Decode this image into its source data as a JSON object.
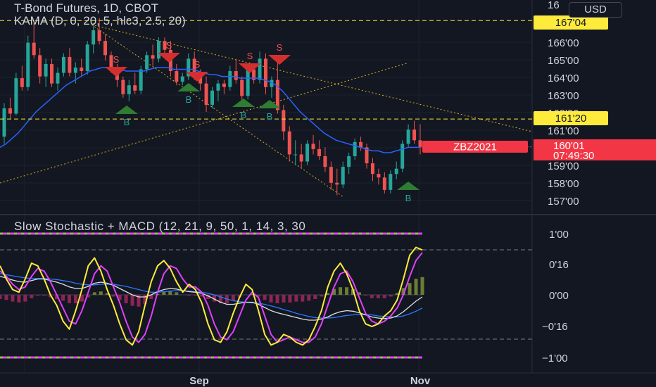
{
  "header": {
    "title": "T-Bond Futures, 1D, CBOT",
    "indicator": "KAMA (D, 0, 20, 5, hlc3, 2.5, 20)",
    "currency": "USD"
  },
  "price_axis": {
    "ticks": [
      "167'00",
      "166'00",
      "165'00",
      "164'00",
      "163'00",
      "162'00",
      "161'00",
      "160'00",
      "159'00",
      "158'00",
      "157'00"
    ],
    "top_partial": "16",
    "labels": {
      "upper_level": "167'04",
      "lower_level": "161'20",
      "last_price": "160'01",
      "countdown": "07:49:30",
      "symbol": "ZBZ2021"
    }
  },
  "oscillator": {
    "title": "Slow Stochastic + MACD (12, 21, 9, 50, 1, 14, 3, 30",
    "ticks": [
      "1'00",
      "0'16",
      "0'00",
      "−0'16",
      "−1'00"
    ]
  },
  "time_axis": {
    "labels": [
      "Sep",
      "Nov"
    ]
  },
  "signals": {
    "sell": "S",
    "buy": "B"
  },
  "colors": {
    "background": "#131722",
    "up": "#26a69a",
    "down": "#ef5350",
    "kama": "#2962ff",
    "stoch_k": "#ffeb3b",
    "stoch_d": "#e040fb",
    "macd": "#e0e0e0",
    "signal": "#2979ff",
    "level_label": "#ffeb3b",
    "price_label": "#f23645"
  },
  "chart_data": {
    "type": "candlestick",
    "x_labels": [
      "Sep",
      "Nov"
    ],
    "y_range": [
      156.5,
      168.0
    ],
    "candles": [
      [
        160.6,
        162.5,
        160.2,
        162.2
      ],
      [
        162.2,
        162.8,
        161.6,
        161.9
      ],
      [
        161.9,
        164.2,
        161.8,
        163.9
      ],
      [
        163.9,
        164.6,
        163.2,
        163.4
      ],
      [
        163.4,
        166.3,
        163.2,
        165.9
      ],
      [
        165.9,
        167.0,
        165.0,
        165.2
      ],
      [
        165.2,
        165.6,
        163.6,
        164.0
      ],
      [
        164.0,
        165.0,
        163.4,
        164.7
      ],
      [
        164.7,
        165.0,
        163.4,
        163.6
      ],
      [
        163.6,
        164.5,
        163.2,
        164.2
      ],
      [
        164.2,
        165.3,
        164.0,
        165.1
      ],
      [
        165.1,
        165.6,
        164.0,
        164.2
      ],
      [
        164.2,
        164.8,
        163.6,
        164.5
      ],
      [
        164.5,
        165.0,
        164.0,
        164.3
      ],
      [
        164.3,
        166.0,
        164.1,
        165.8
      ],
      [
        165.8,
        167.0,
        165.3,
        166.6
      ],
      [
        166.6,
        167.3,
        165.8,
        166.0
      ],
      [
        166.0,
        166.4,
        164.9,
        165.2
      ],
      [
        165.2,
        165.4,
        164.2,
        164.5
      ],
      [
        164.5,
        164.7,
        163.4,
        163.8
      ],
      [
        163.8,
        164.0,
        162.8,
        163.0
      ],
      [
        163.0,
        163.8,
        162.6,
        163.5
      ],
      [
        163.5,
        164.2,
        163.0,
        163.2
      ],
      [
        163.2,
        164.6,
        163.0,
        164.4
      ],
      [
        164.4,
        165.4,
        164.2,
        165.2
      ],
      [
        165.2,
        165.8,
        164.6,
        165.0
      ],
      [
        165.0,
        166.2,
        164.8,
        166.0
      ],
      [
        166.0,
        166.2,
        165.2,
        165.5
      ],
      [
        165.5,
        166.0,
        164.0,
        164.3
      ],
      [
        164.3,
        164.7,
        163.5,
        163.7
      ],
      [
        163.7,
        164.2,
        163.5,
        164.0
      ],
      [
        164.0,
        165.3,
        163.8,
        165.0
      ],
      [
        165.0,
        165.4,
        163.8,
        164.2
      ],
      [
        164.2,
        164.4,
        163.2,
        163.6
      ],
      [
        163.6,
        164.0,
        162.0,
        162.4
      ],
      [
        162.4,
        163.4,
        162.2,
        163.2
      ],
      [
        163.2,
        163.8,
        162.6,
        163.6
      ],
      [
        163.6,
        163.8,
        163.0,
        163.4
      ],
      [
        163.4,
        164.6,
        163.2,
        164.3
      ],
      [
        164.3,
        165.0,
        163.6,
        163.8
      ],
      [
        163.8,
        164.0,
        162.6,
        162.9
      ],
      [
        162.9,
        164.6,
        162.7,
        164.4
      ],
      [
        164.4,
        164.6,
        163.6,
        163.8
      ],
      [
        163.8,
        165.4,
        163.6,
        165.0
      ],
      [
        165.0,
        165.3,
        163.0,
        163.4
      ],
      [
        163.4,
        164.0,
        162.8,
        163.8
      ],
      [
        163.8,
        164.8,
        161.9,
        162.1
      ],
      [
        162.1,
        162.4,
        160.4,
        160.9
      ],
      [
        160.9,
        161.2,
        159.2,
        159.6
      ],
      [
        159.6,
        160.4,
        159.0,
        159.6
      ],
      [
        159.6,
        160.2,
        158.8,
        159.2
      ],
      [
        159.2,
        160.4,
        159.0,
        160.2
      ],
      [
        160.2,
        160.7,
        159.6,
        159.9
      ],
      [
        159.9,
        160.4,
        159.3,
        159.5
      ],
      [
        159.5,
        160.0,
        158.6,
        158.9
      ],
      [
        158.9,
        159.2,
        157.6,
        158.0
      ],
      [
        158.0,
        158.8,
        157.3,
        157.9
      ],
      [
        157.9,
        159.2,
        157.7,
        158.9
      ],
      [
        158.9,
        159.7,
        158.5,
        159.5
      ],
      [
        159.5,
        160.5,
        159.3,
        160.3
      ],
      [
        160.3,
        160.6,
        159.8,
        160.0
      ],
      [
        160.0,
        160.2,
        158.8,
        159.1
      ],
      [
        159.1,
        159.4,
        158.1,
        158.5
      ],
      [
        158.5,
        158.8,
        157.9,
        158.3
      ],
      [
        158.3,
        158.6,
        157.4,
        157.6
      ],
      [
        157.6,
        158.7,
        157.4,
        158.5
      ],
      [
        158.5,
        159.2,
        158.2,
        158.8
      ],
      [
        158.8,
        160.4,
        158.6,
        160.2
      ],
      [
        160.2,
        161.3,
        160.0,
        161.0
      ],
      [
        161.0,
        161.5,
        160.2,
        160.4
      ],
      [
        160.4,
        161.3,
        159.6,
        160.0
      ]
    ],
    "kama": [
      160.0,
      160.2,
      160.5,
      160.8,
      161.2,
      161.6,
      162.0,
      162.3,
      162.6,
      162.9,
      163.2,
      163.5,
      163.7,
      163.9,
      164.1,
      164.3,
      164.4,
      164.5,
      164.5,
      164.5,
      164.4,
      164.3,
      164.3,
      164.3,
      164.3,
      164.4,
      164.5,
      164.5,
      164.5,
      164.4,
      164.4,
      164.4,
      164.4,
      164.3,
      164.2,
      164.1,
      164.1,
      164.0,
      164.0,
      164.0,
      163.9,
      163.9,
      163.9,
      163.9,
      163.8,
      163.7,
      163.5,
      163.2,
      162.8,
      162.4,
      162.0,
      161.7,
      161.4,
      161.1,
      160.8,
      160.6,
      160.4,
      160.3,
      160.2,
      160.1,
      160.0,
      159.9,
      159.8,
      159.8,
      159.7,
      159.7,
      159.8,
      159.9,
      160.0,
      160.0,
      160.0
    ],
    "levels": [
      167.15,
      161.6
    ],
    "last_price": 160.03,
    "osc_range": [
      -1.2,
      1.2
    ],
    "stoch_k": [
      0.55,
      0.3,
      0.1,
      0.05,
      0.3,
      0.6,
      0.55,
      0.3,
      0.0,
      -0.2,
      -0.5,
      -0.65,
      -0.3,
      0.1,
      0.55,
      0.7,
      0.45,
      0.1,
      -0.2,
      -0.55,
      -0.85,
      -0.95,
      -0.7,
      -0.2,
      0.25,
      0.55,
      0.65,
      0.5,
      0.25,
      0.05,
      0.2,
      0.1,
      -0.15,
      -0.55,
      -0.85,
      -0.9,
      -0.7,
      -0.35,
      -0.05,
      0.2,
      0.1,
      -0.3,
      -0.75,
      -0.95,
      -0.9,
      -0.75,
      -0.8,
      -0.9,
      -0.95,
      -0.85,
      -0.6,
      -0.3,
      0.15,
      0.45,
      0.6,
      0.4,
      0.1,
      -0.3,
      -0.55,
      -0.6,
      -0.55,
      -0.4,
      -0.3,
      -0.1,
      0.3,
      0.75,
      0.9,
      0.85
    ],
    "stoch_d": [
      0.45,
      0.35,
      0.2,
      0.1,
      0.15,
      0.35,
      0.5,
      0.45,
      0.25,
      0.0,
      -0.25,
      -0.5,
      -0.55,
      -0.3,
      0.05,
      0.4,
      0.55,
      0.45,
      0.15,
      -0.15,
      -0.5,
      -0.8,
      -0.9,
      -0.75,
      -0.4,
      0.05,
      0.4,
      0.55,
      0.5,
      0.3,
      0.15,
      0.15,
      0.05,
      -0.2,
      -0.55,
      -0.8,
      -0.85,
      -0.7,
      -0.4,
      -0.1,
      0.05,
      -0.05,
      -0.4,
      -0.75,
      -0.9,
      -0.85,
      -0.8,
      -0.85,
      -0.9,
      -0.9,
      -0.8,
      -0.55,
      -0.2,
      0.15,
      0.4,
      0.45,
      0.25,
      -0.05,
      -0.35,
      -0.5,
      -0.55,
      -0.5,
      -0.4,
      -0.25,
      0.0,
      0.35,
      0.65,
      0.8
    ],
    "macd": [
      0.35,
      0.32,
      0.28,
      0.25,
      0.24,
      0.27,
      0.3,
      0.3,
      0.27,
      0.24,
      0.2,
      0.15,
      0.12,
      0.12,
      0.16,
      0.22,
      0.24,
      0.22,
      0.18,
      0.12,
      0.06,
      0.0,
      -0.04,
      -0.04,
      0.0,
      0.06,
      0.1,
      0.12,
      0.11,
      0.08,
      0.06,
      0.05,
      0.03,
      -0.02,
      -0.08,
      -0.14,
      -0.18,
      -0.18,
      -0.16,
      -0.14,
      -0.14,
      -0.18,
      -0.24,
      -0.3,
      -0.34,
      -0.37,
      -0.4,
      -0.43,
      -0.46,
      -0.48,
      -0.48,
      -0.46,
      -0.42,
      -0.36,
      -0.32,
      -0.3,
      -0.31,
      -0.34,
      -0.38,
      -0.42,
      -0.44,
      -0.45,
      -0.44,
      -0.4,
      -0.32,
      -0.22,
      -0.12,
      -0.04
    ],
    "signal": [
      0.4,
      0.38,
      0.36,
      0.34,
      0.32,
      0.31,
      0.31,
      0.31,
      0.3,
      0.29,
      0.27,
      0.25,
      0.22,
      0.2,
      0.19,
      0.19,
      0.2,
      0.2,
      0.2,
      0.18,
      0.16,
      0.13,
      0.1,
      0.07,
      0.05,
      0.05,
      0.06,
      0.07,
      0.08,
      0.08,
      0.07,
      0.06,
      0.05,
      0.03,
      0.0,
      -0.04,
      -0.08,
      -0.11,
      -0.13,
      -0.14,
      -0.15,
      -0.16,
      -0.18,
      -0.21,
      -0.24,
      -0.28,
      -0.31,
      -0.35,
      -0.38,
      -0.41,
      -0.43,
      -0.44,
      -0.44,
      -0.43,
      -0.41,
      -0.39,
      -0.38,
      -0.37,
      -0.37,
      -0.38,
      -0.4,
      -0.41,
      -0.42,
      -0.42,
      -0.4,
      -0.36,
      -0.31,
      -0.25
    ],
    "histogram": [
      -0.05,
      -0.06,
      -0.08,
      -0.09,
      -0.08,
      -0.04,
      -0.01,
      -0.01,
      -0.03,
      -0.05,
      -0.07,
      -0.1,
      -0.1,
      -0.08,
      -0.03,
      0.03,
      0.04,
      0.02,
      -0.02,
      -0.06,
      -0.1,
      -0.13,
      -0.14,
      -0.11,
      -0.05,
      0.01,
      0.04,
      0.05,
      0.03,
      0.0,
      -0.01,
      -0.01,
      -0.02,
      -0.05,
      -0.08,
      -0.1,
      -0.1,
      -0.07,
      -0.03,
      0.0,
      0.01,
      -0.02,
      -0.06,
      -0.09,
      -0.1,
      -0.09,
      -0.09,
      -0.08,
      -0.08,
      -0.07,
      -0.05,
      -0.02,
      0.02,
      0.07,
      0.09,
      0.09,
      0.07,
      0.03,
      -0.01,
      -0.04,
      -0.04,
      -0.04,
      -0.02,
      0.02,
      0.08,
      0.14,
      0.19,
      0.21
    ]
  }
}
